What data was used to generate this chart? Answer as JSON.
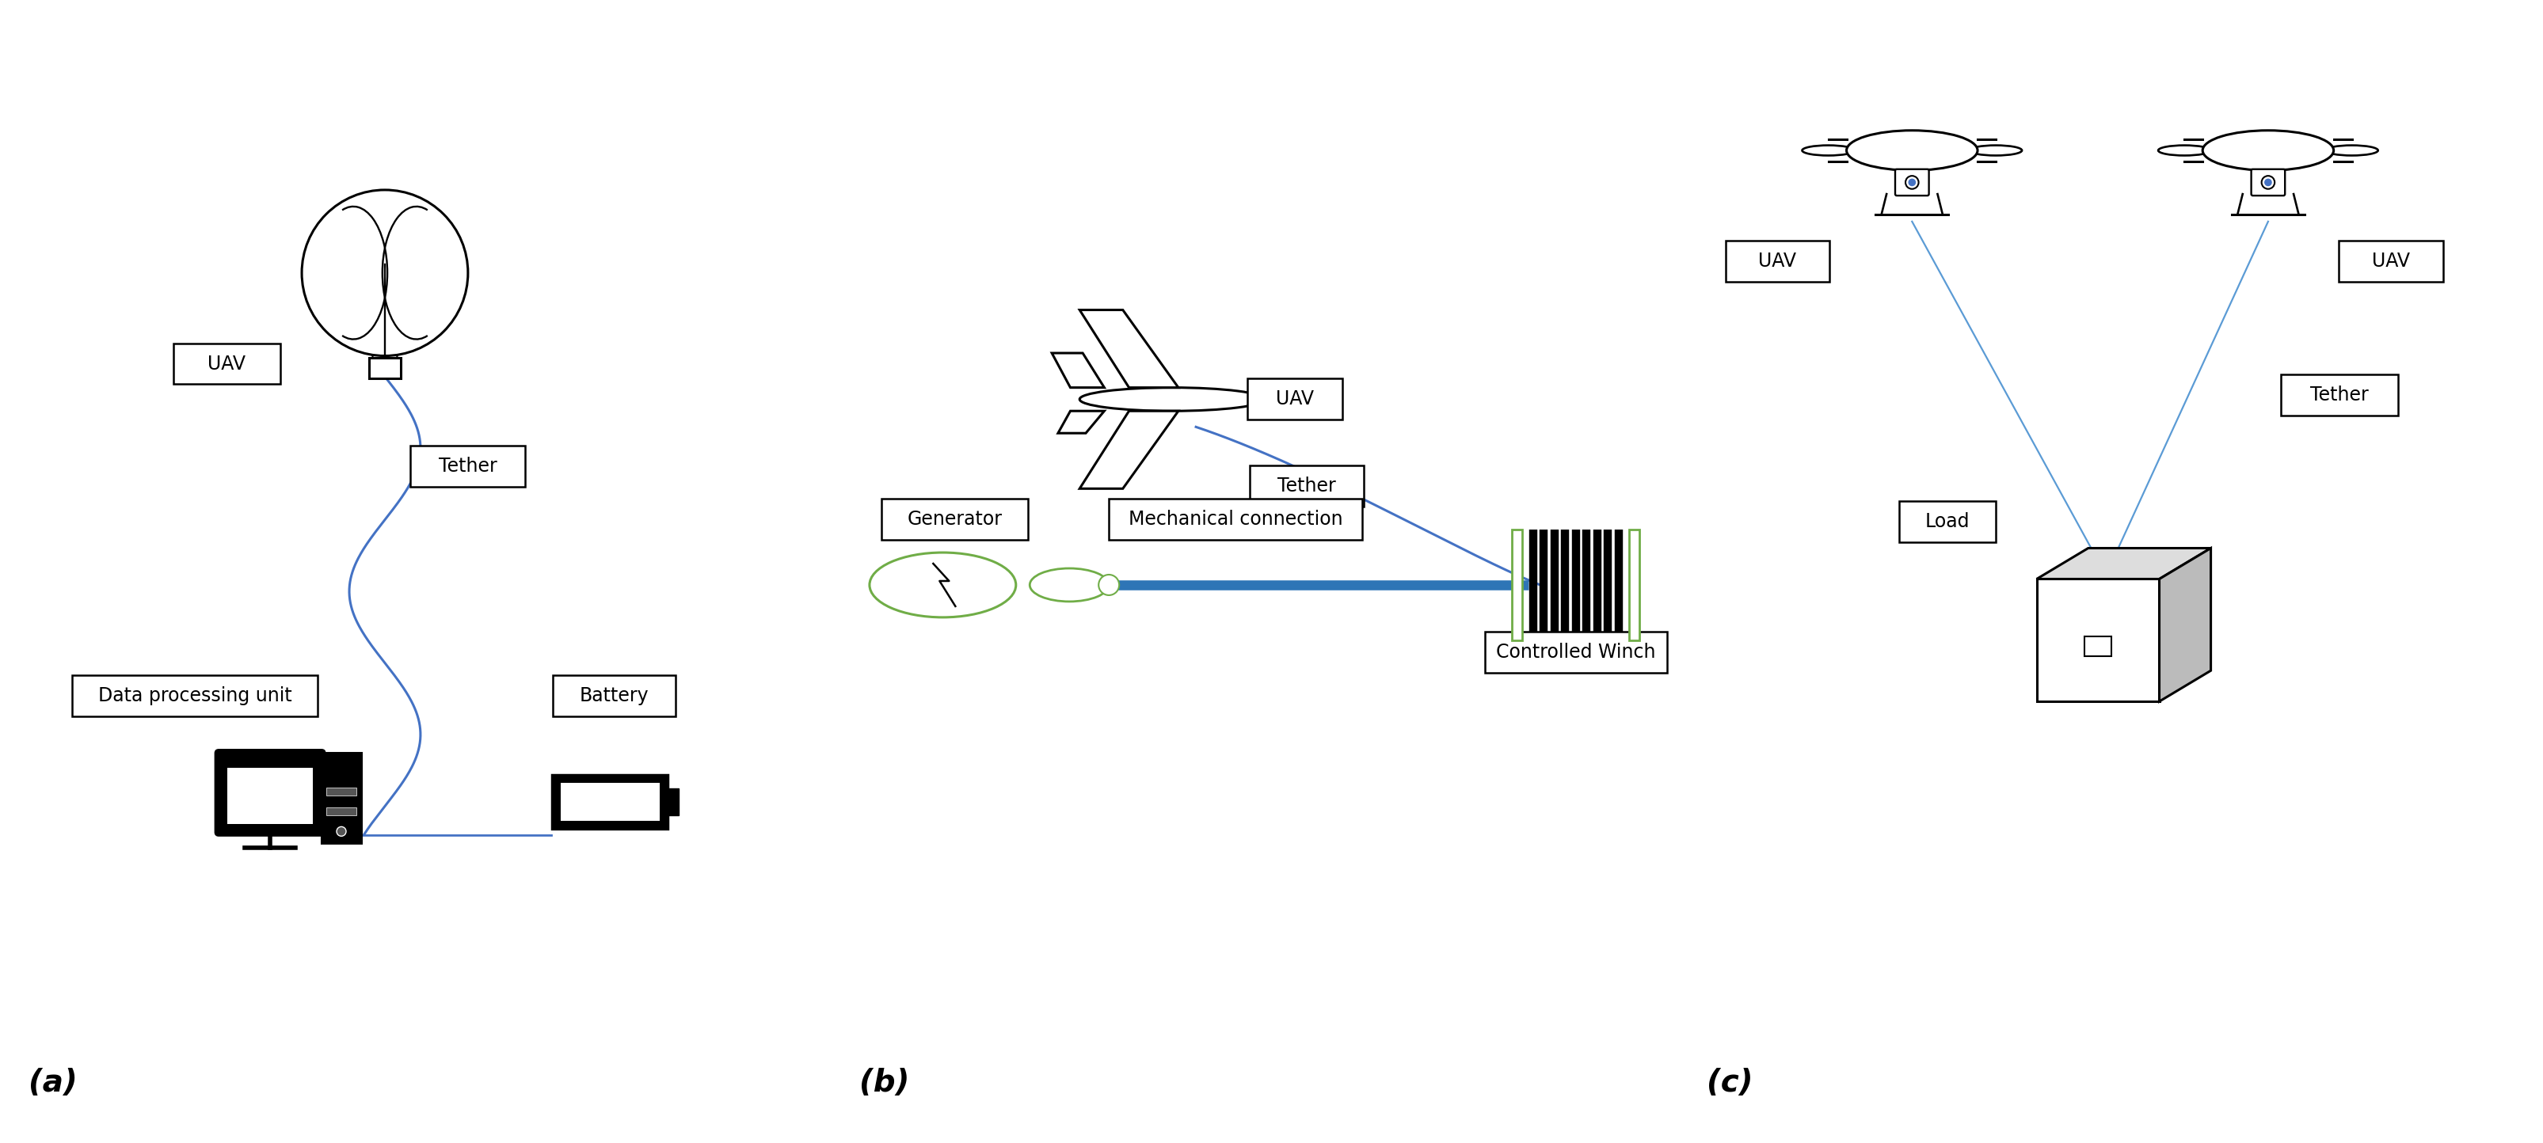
{
  "bg_color": "#ffffff",
  "tether_color": "#4472c4",
  "outline_color": "#000000",
  "green_color": "#70ad47",
  "blue_rod_color": "#2e75b6",
  "label_a": "(a)",
  "label_b": "(b)",
  "label_c": "(c)",
  "box_labels": {
    "uav_a": "UAV",
    "tether_a": "Tether",
    "data_proc": "Data processing unit",
    "battery": "Battery",
    "uav_b": "UAV",
    "tether_b": "Tether",
    "generator": "Generator",
    "mech_conn": "Mechanical connection",
    "ctrl_winch": "Controlled Winch",
    "uav_c1": "UAV",
    "uav_c2": "UAV",
    "tether_c": "Tether",
    "load": "Load"
  },
  "font_size_box": 17,
  "font_size_abc": 28
}
